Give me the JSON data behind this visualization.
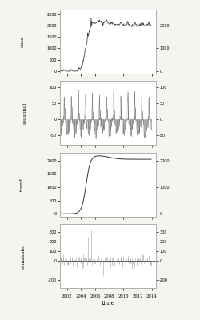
{
  "title": "",
  "xlabel": "time",
  "panels": [
    "data",
    "seasonal",
    "trend",
    "remainder"
  ],
  "ylims": {
    "data": [
      -100,
      2700
    ],
    "seasonal": [
      -80,
      120
    ],
    "trend": [
      -100,
      2300
    ],
    "remainder": [
      -280,
      380
    ]
  },
  "yticks": {
    "data": [
      0,
      500,
      1000,
      1500,
      2000,
      2500
    ],
    "seasonal": [
      -50,
      0,
      50,
      100
    ],
    "trend": [
      0,
      500,
      1000,
      1500,
      2000
    ],
    "remainder": [
      -200,
      0,
      100,
      200,
      300
    ]
  },
  "right_yticks": {
    "data": [
      0,
      1000,
      2000
    ],
    "seasonal": [
      -50,
      0,
      50,
      100
    ],
    "trend": [
      0,
      1000,
      2000
    ],
    "remainder": [
      -200,
      0,
      100,
      200,
      300
    ]
  },
  "xticks": [
    2002,
    2004,
    2006,
    2008,
    2010,
    2012,
    2014
  ],
  "xlim": [
    2001.0,
    2014.6
  ],
  "time_start": 2001.0,
  "n_months": 156,
  "bg_color": "#f5f4f1",
  "line_color": "#333333",
  "panel_bg": "#ffffff"
}
